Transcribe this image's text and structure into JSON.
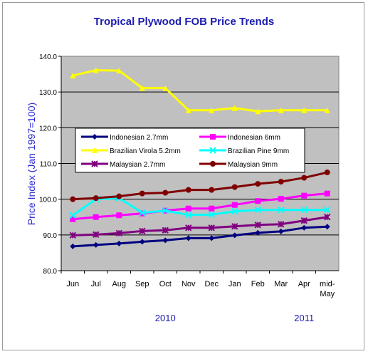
{
  "chart_data": {
    "type": "line",
    "title": "Tropical Plywood FOB Price Trends",
    "ylabel": "Price Index (Jan 1997=100)",
    "xlabel": "",
    "ylim": [
      80,
      140
    ],
    "yticks": [
      "80.0",
      "90.0",
      "100.0",
      "110.0",
      "120.0",
      "130.0",
      "140.0"
    ],
    "categories": [
      "Jun",
      "Jul",
      "Aug",
      "Sep",
      "Oct",
      "Nov",
      "Dec",
      "Jan",
      "Feb",
      "Mar",
      "Apr",
      "mid-May"
    ],
    "year_labels": [
      {
        "label": "2010",
        "category": "Oct"
      },
      {
        "label": "2011",
        "category": "Apr"
      }
    ],
    "grid": true,
    "legend_position": "center-left",
    "series": [
      {
        "name": "Indonesian 2.7mm",
        "color": "#000080",
        "marker": "diamond",
        "values": [
          86.8,
          87.2,
          87.6,
          88.1,
          88.5,
          89.1,
          89.1,
          89.9,
          90.6,
          91.0,
          92.0,
          92.3
        ]
      },
      {
        "name": "Indonesian 6mm",
        "color": "#ff00ff",
        "marker": "square",
        "values": [
          94.4,
          95.0,
          95.5,
          96.0,
          96.8,
          97.4,
          97.4,
          98.4,
          99.5,
          100.1,
          101.0,
          101.6
        ]
      },
      {
        "name": "Brazilian Virola 5.2mm",
        "color": "#ffff00",
        "marker": "triangle",
        "values": [
          134.6,
          136.1,
          136.0,
          131.1,
          131.1,
          124.9,
          124.9,
          125.5,
          124.6,
          124.9,
          124.9,
          124.9
        ]
      },
      {
        "name": "Brazilian Pine 9mm",
        "color": "#00ffff",
        "marker": "cross",
        "values": [
          95.5,
          100.0,
          100.3,
          96.2,
          96.8,
          95.6,
          95.7,
          96.6,
          97.0,
          97.0,
          97.0,
          97.0
        ]
      },
      {
        "name": "Malaysian 2.7mm",
        "color": "#800080",
        "marker": "star",
        "values": [
          89.9,
          90.1,
          90.5,
          91.1,
          91.3,
          92.0,
          92.0,
          92.4,
          92.8,
          93.0,
          94.0,
          95.0
        ]
      },
      {
        "name": "Malaysian 9mm",
        "color": "#800000",
        "marker": "circle",
        "values": [
          100.0,
          100.3,
          100.8,
          101.6,
          101.8,
          102.6,
          102.6,
          103.4,
          104.3,
          104.9,
          106.0,
          107.5
        ]
      }
    ]
  }
}
